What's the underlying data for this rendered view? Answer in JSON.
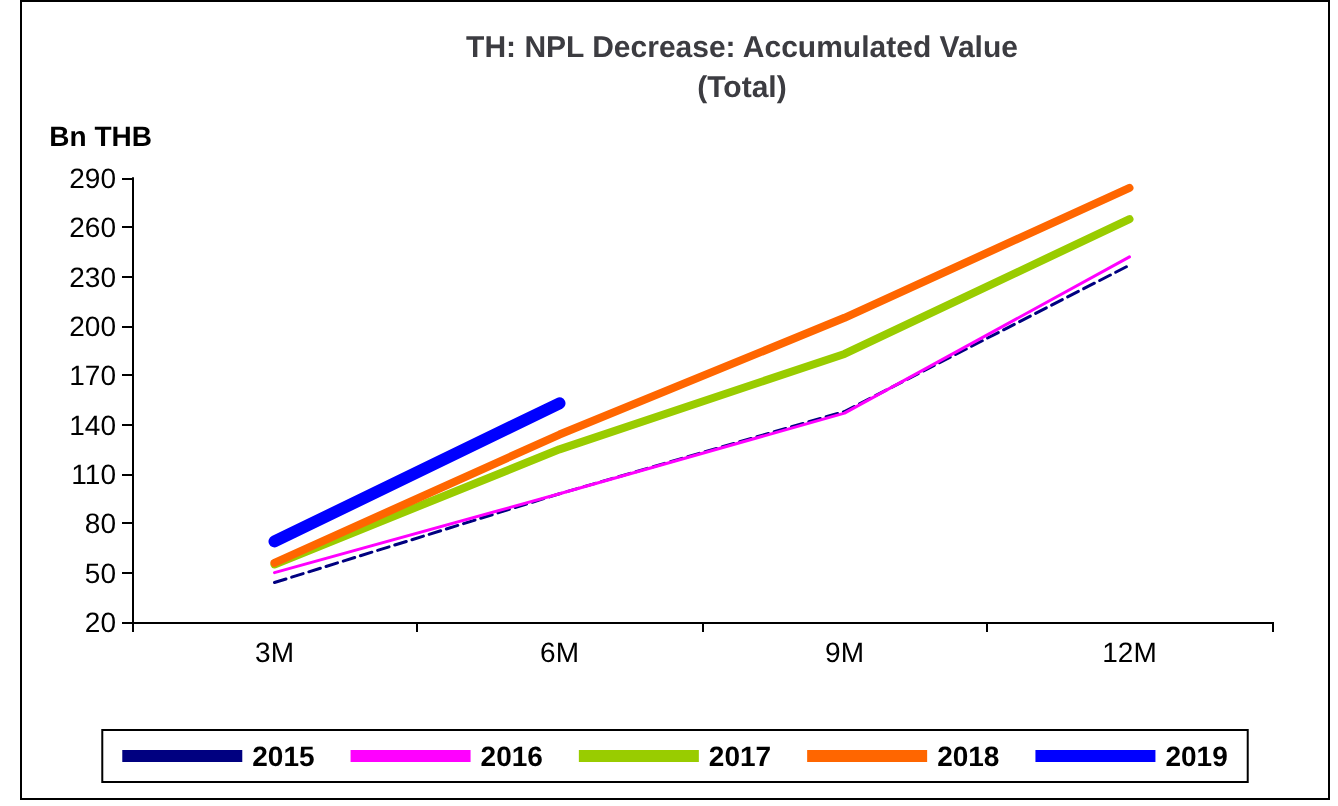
{
  "chart_data": {
    "type": "line",
    "title": "TH: NPL Decrease: Accumulated Value\n(Total)",
    "ylabel": "Bn THB",
    "categories": [
      "3M",
      "6M",
      "9M",
      "12M"
    ],
    "ylim": [
      20,
      290
    ],
    "yticks": [
      20,
      50,
      80,
      110,
      140,
      170,
      200,
      230,
      260,
      290
    ],
    "grid": false,
    "legend": "bottom",
    "marker": "none",
    "series": [
      {
        "name": "2015",
        "color": "#000080",
        "line_style": "dashed",
        "values": [
          44,
          98,
          148,
          237
        ]
      },
      {
        "name": "2016",
        "color": "#ff00ff",
        "values": [
          50,
          98,
          147,
          242
        ]
      },
      {
        "name": "2017",
        "color": "#99cc00",
        "values": [
          55,
          125,
          183,
          265
        ]
      },
      {
        "name": "2018",
        "color": "#ff6600",
        "values": [
          56,
          134,
          205,
          284
        ]
      },
      {
        "name": "2019",
        "color": "#0000ff",
        "values": [
          69,
          153,
          null,
          null
        ]
      }
    ]
  }
}
